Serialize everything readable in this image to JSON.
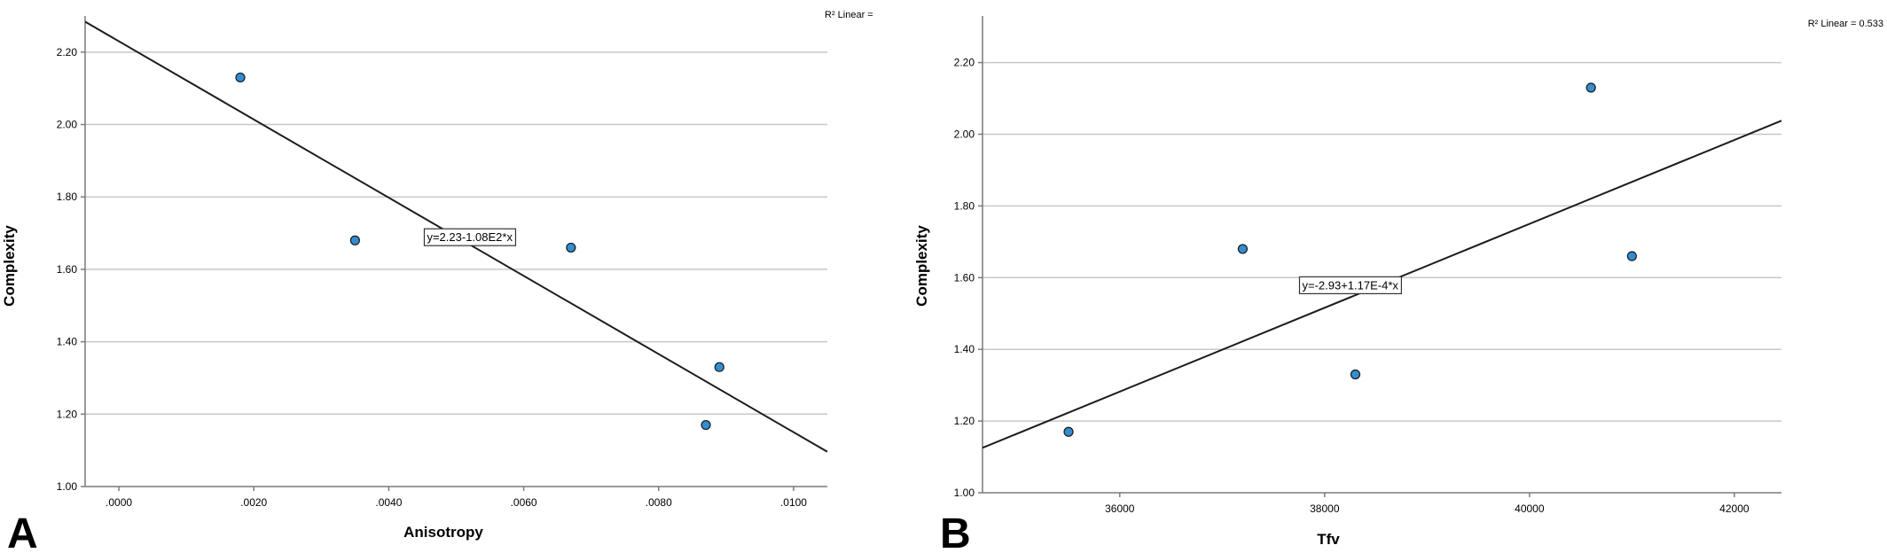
{
  "chart_data": [
    {
      "type": "scatter",
      "panel_label": "A",
      "xlabel": "Anisotropy",
      "ylabel": "Complexity",
      "xlim": [
        -0.0005,
        0.0105
      ],
      "ylim": [
        1.0,
        2.3
      ],
      "x_ticks": [
        0.0,
        0.002,
        0.004,
        0.006,
        0.008,
        0.01
      ],
      "x_tick_labels": [
        ".0000",
        ".0020",
        ".0040",
        ".0060",
        ".0080",
        ".0100"
      ],
      "y_ticks": [
        1.0,
        1.2,
        1.4,
        1.6,
        1.8,
        2.0,
        2.2
      ],
      "y_tick_labels": [
        "1.00",
        "1.20",
        "1.40",
        "1.60",
        "1.80",
        "2.00",
        "2.20"
      ],
      "grid": "horizontal",
      "points": [
        {
          "x": 0.0018,
          "y": 2.13
        },
        {
          "x": 0.0035,
          "y": 1.68
        },
        {
          "x": 0.0067,
          "y": 1.66
        },
        {
          "x": 0.0089,
          "y": 1.33
        },
        {
          "x": 0.0087,
          "y": 1.17
        }
      ],
      "fit_line": {
        "intercept": 2.23,
        "slope": -108,
        "label": "y=2.23-1.08E2*x",
        "label_at": {
          "x": 0.0052,
          "y": 1.69
        }
      },
      "r2_text": "R² Linear ="
    },
    {
      "type": "scatter",
      "panel_label": "B",
      "xlabel": "Tfv",
      "ylabel": "Complexity",
      "xlim": [
        34660,
        42460
      ],
      "ylim": [
        1.0,
        2.33
      ],
      "x_ticks": [
        36000,
        38000,
        40000,
        42000
      ],
      "x_tick_labels": [
        "36000",
        "38000",
        "40000",
        "42000"
      ],
      "y_ticks": [
        1.0,
        1.2,
        1.4,
        1.6,
        1.8,
        2.0,
        2.2
      ],
      "y_tick_labels": [
        "1.00",
        "1.20",
        "1.40",
        "1.60",
        "1.80",
        "2.00",
        "2.20"
      ],
      "grid": "horizontal",
      "points": [
        {
          "x": 35500,
          "y": 1.17
        },
        {
          "x": 37200,
          "y": 1.68
        },
        {
          "x": 38300,
          "y": 1.33
        },
        {
          "x": 40600,
          "y": 2.13
        },
        {
          "x": 41000,
          "y": 1.66
        }
      ],
      "fit_line": {
        "intercept": -2.93,
        "slope": 0.000117,
        "label": "y=-2.93+1.17E-4*x",
        "label_at": {
          "x": 38250,
          "y": 1.58
        }
      },
      "r2_text": "R² Linear = 0.533"
    }
  ],
  "colors": {
    "point_fill": "#2f8fd5",
    "point_stroke": "#1a1a1a",
    "grid": "#c8c8c8",
    "axis": "#7a7a7a",
    "fit_line": "#1c1c1c"
  }
}
